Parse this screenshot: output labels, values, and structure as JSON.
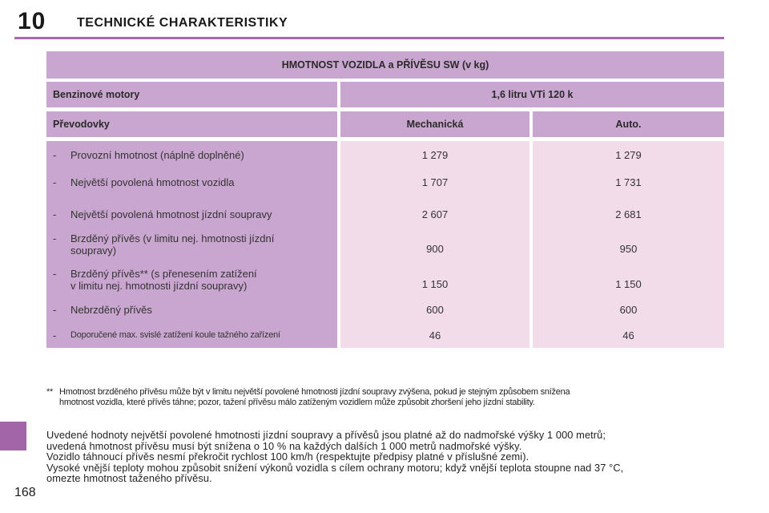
{
  "header": {
    "chapter_number": "10",
    "chapter_title": "TECHNICKÉ CHARAKTERISTIKY"
  },
  "table": {
    "title": "HMOTNOST VOZIDLA a PŘÍVĚSU SW (v kg)",
    "engine_label": "Benzinové motory",
    "engine_value": "1,6 litru VTi 120 k",
    "gearbox_label": "Převodovky",
    "gearbox_manual": "Mechanická",
    "gearbox_auto": "Auto.",
    "rows": [
      {
        "label": "Provozní hmotnost (náplně doplněné)",
        "manual": "1 279",
        "auto": "1 279"
      },
      {
        "label": "Největší povolená hmotnost vozidla",
        "manual": "1 707",
        "auto": "1 731"
      },
      {
        "label": "Největší povolená hmotnost jízdní soupravy",
        "manual": "2 607",
        "auto": "2 681"
      },
      {
        "label_line1": "Brzděný přívěs (v limitu nej. hmotnosti jízdní",
        "label_line2": "soupravy)",
        "manual": "900",
        "auto": "950"
      },
      {
        "label_line1": "Brzděný přívěs** (s přenesením zatížení",
        "label_line2": "v limitu nej. hmotnosti jízdní soupravy)",
        "manual": "1 150",
        "auto": "1 150"
      },
      {
        "label": "Nebrzděný přívěs",
        "manual": "600",
        "auto": "600"
      },
      {
        "label": "Doporučené max. svislé zatížení koule tažného zařízení",
        "manual": "46",
        "auto": "46"
      }
    ],
    "dash": "-"
  },
  "footnote": {
    "mark": "**",
    "line1": "Hmotnost brzděného přívěsu může být v limitu největší povolené hmotnosti jízdní soupravy zvýšena, pokud je stejným způsobem snížena",
    "line2": "hmotnost vozidla, které přívěs táhne; pozor, tažení přívěsu málo zatíženým vozidlem může způsobit zhoršení jeho jízdní stability."
  },
  "paragraph": {
    "line1": "Uvedené hodnoty největší povolené hmotnosti jízdní soupravy a přívěsů jsou platné až do nadmořské výšky 1 000 metrů;",
    "line2": "uvedená hmotnost přívěsu musí být snížena o 10 % na každých dalších 1 000 metrů nadmořské výšky.",
    "line3": "Vozidlo táhnoucí přívěs nesmí překročit rychlost 100 km/h (respektujte předpisy platné v příslušné zemi).",
    "line4": "Vysoké vnější teploty mohou způsobit snížení výkonů vozidla s cílem ochrany motoru; když vnější teplota stoupne nad 37 °C,",
    "line5": "omezte hmotnost taženého přívěsu."
  },
  "page_number": "168",
  "colors": {
    "accent": "#a86bb0",
    "header_cell": "#c9a6cf",
    "value_cell": "#f2dcea"
  }
}
